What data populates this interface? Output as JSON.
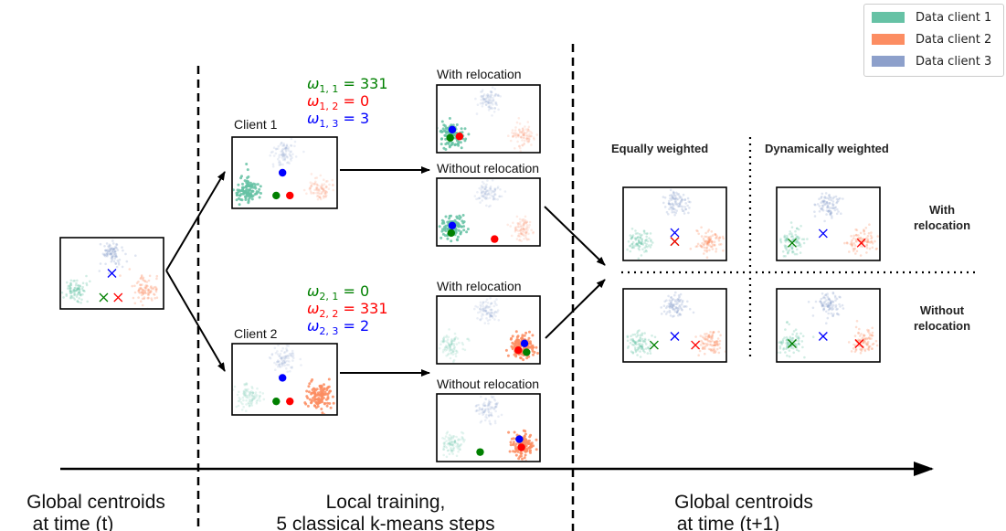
{
  "legend": [
    {
      "label": "Data client 1",
      "color": "#66c2a5"
    },
    {
      "label": "Data client 2",
      "color": "#fc8d62"
    },
    {
      "label": "Data client 3",
      "color": "#8da0cb"
    }
  ],
  "colors": {
    "client1": "#66c2a5",
    "client2": "#fc8d62",
    "client3": "#8da0cb",
    "centroid1": "#008000",
    "centroid2": "#ff0000",
    "centroid3": "#0000ff"
  },
  "client1": {
    "label": "Client 1",
    "weights": [
      {
        "sub": "1, 1",
        "value": "331",
        "color": "#008000"
      },
      {
        "sub": "1, 2",
        "value": "0",
        "color": "#ff0000"
      },
      {
        "sub": "1, 3",
        "value": "3",
        "color": "#0000ff"
      }
    ]
  },
  "client2": {
    "label": "Client 2",
    "weights": [
      {
        "sub": "2, 1",
        "value": "0",
        "color": "#008000"
      },
      {
        "sub": "2, 2",
        "value": "331",
        "color": "#ff0000"
      },
      {
        "sub": "2, 3",
        "value": "2",
        "color": "#0000ff"
      }
    ]
  },
  "labels": {
    "with_relocation": "With relocation",
    "without_relocation": "Without relocation",
    "equally_weighted": "Equally weighted",
    "dynamically_weighted": "Dynamically weighted",
    "with_line1": "With",
    "with_line2": "relocation",
    "without_line1": "Without",
    "without_line2": "relocation"
  },
  "timeline": {
    "section1_line1": "Global centroids",
    "section1_line2": "at time (t)",
    "section2_line1": "Local training,",
    "section2_line2": "5 classical k-means steps",
    "section3_line1": "Global centroids",
    "section3_line2": "at time (t+1)"
  }
}
